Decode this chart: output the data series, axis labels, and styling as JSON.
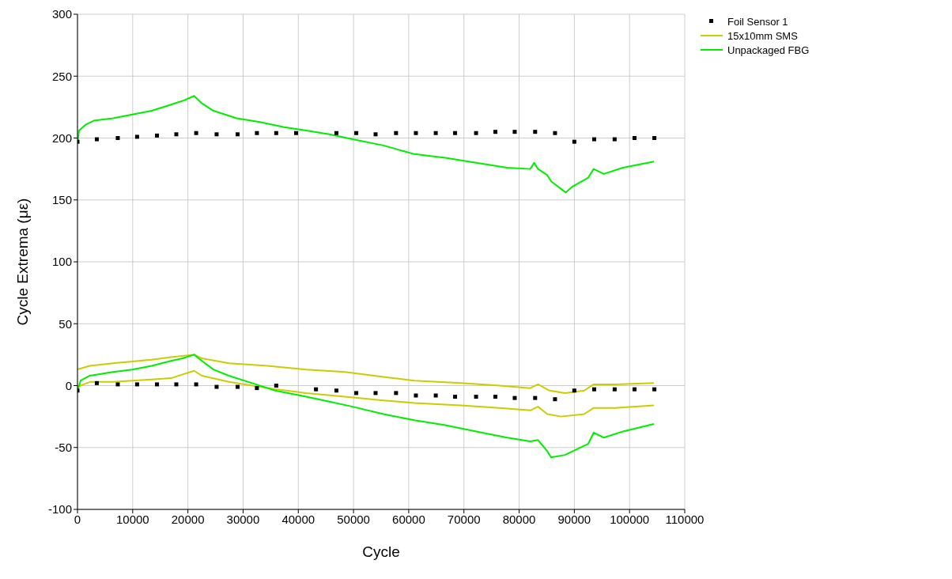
{
  "chart_data": {
    "type": "line",
    "xlabel": "Cycle",
    "ylabel": "Cycle Extrema (με)",
    "xlim": [
      0,
      110000
    ],
    "xticks": [
      0,
      10000,
      20000,
      30000,
      40000,
      50000,
      60000,
      70000,
      80000,
      90000,
      100000,
      110000
    ],
    "ylim": [
      -100,
      300
    ],
    "yticks": [
      -100,
      -50,
      0,
      50,
      100,
      150,
      200,
      250,
      300
    ],
    "grid": true,
    "legend": "top right",
    "series": [
      {
        "name": "Foil Sensor 1",
        "type": "scatter",
        "marker": "square",
        "color": "#000000",
        "x": [
          0,
          3500,
          7300,
          10800,
          14400,
          17900,
          21500,
          25200,
          29000,
          32500,
          36000,
          39600,
          46900,
          50500,
          54000,
          57700,
          61300,
          64900,
          68400,
          72200,
          75700,
          79200,
          82900,
          86500,
          90000,
          93600,
          97300,
          100900,
          104500,
          0,
          3500,
          7300,
          10800,
          14400,
          17900,
          21500,
          25200,
          29000,
          32500,
          36000,
          43200,
          46900,
          50500,
          54000,
          57700,
          61300,
          64900,
          68400,
          72200,
          75700,
          79200,
          82900,
          86500,
          90000,
          93600,
          97300,
          100900,
          104500
        ],
        "values": [
          197,
          199,
          200,
          201,
          202,
          203,
          204,
          203,
          203,
          204,
          204,
          204,
          204,
          204,
          203,
          204,
          204,
          204,
          204,
          204,
          205,
          205,
          205,
          204,
          197,
          199,
          199,
          200,
          200,
          -4,
          2,
          1,
          1,
          1,
          1,
          1,
          -1,
          -1,
          -2,
          0,
          -3,
          -4,
          -6,
          -6,
          -6,
          -8,
          -8,
          -9,
          -9,
          -9,
          -10,
          -10,
          -11,
          -4,
          -3,
          -3,
          -3,
          -3
        ]
      },
      {
        "name": "15x10mm SMS",
        "marker": "none",
        "color": "#cccc00",
        "x": [
          0,
          2240,
          6440,
          13440,
          16940,
          21130,
          22530,
          27430,
          34430,
          41430,
          48430,
          55420,
          61020,
          69420,
          76420,
          82020,
          83420,
          85520,
          88310,
          91800,
          93500,
          97420,
          104410
        ],
        "values": [
          13,
          16,
          18,
          21,
          23,
          25,
          22,
          18,
          16,
          13,
          11,
          7,
          4,
          2,
          0,
          -2,
          1,
          -4,
          -6,
          -4,
          1,
          1,
          2
        ]
      },
      {
        "marker": "none",
        "color": "#cccc00",
        "x": [
          0,
          2240,
          6440,
          13440,
          16940,
          21130,
          22530,
          27430,
          34430,
          41430,
          48430,
          55420,
          61020,
          69420,
          76420,
          82020,
          83420,
          85100,
          87620,
          91800,
          93500,
          97420,
          104410
        ],
        "values": [
          -1,
          3,
          3,
          5,
          6,
          12,
          8,
          3,
          -2,
          -6,
          -9,
          -12,
          -14,
          -16,
          -18,
          -20,
          -17,
          -23,
          -25,
          -23,
          -18,
          -18,
          -16
        ]
      },
      {
        "name": "Unpackaged FBG",
        "marker": "none",
        "color": "#00ee00",
        "x": [
          0,
          280,
          1540,
          2940,
          6440,
          9940,
          13440,
          16940,
          19030,
          21130,
          22530,
          24630,
          28830,
          33030,
          37230,
          41430,
          45630,
          49830,
          55420,
          61020,
          66620,
          72220,
          77820,
          82020,
          82720,
          83420,
          85100,
          85800,
          88450,
          89720,
          92520,
          93500,
          95320,
          98810,
          104410
        ],
        "values": [
          196,
          206,
          211,
          214,
          216,
          219,
          222,
          227,
          230,
          234,
          228,
          222,
          216,
          213,
          209,
          206,
          203,
          199,
          194,
          187,
          184,
          180,
          176,
          175,
          180,
          175,
          170,
          165,
          156,
          161,
          168,
          175,
          171,
          176,
          181
        ]
      },
      {
        "marker": "none",
        "color": "#00ee00",
        "x": [
          0,
          560,
          2240,
          6440,
          9940,
          13440,
          16940,
          19030,
          21130,
          22530,
          24630,
          27430,
          31630,
          35830,
          41430,
          45630,
          49830,
          55420,
          61020,
          66620,
          72220,
          77820,
          82020,
          83420,
          85100,
          85800,
          88310,
          89720,
          92520,
          93500,
          95320,
          98810,
          104410
        ],
        "values": [
          -4,
          4,
          8,
          11,
          13,
          16,
          20,
          22,
          25,
          20,
          13,
          8,
          2,
          -4,
          -9,
          -13,
          -17,
          -23,
          -28,
          -32,
          -37,
          -42,
          -45,
          -44,
          -53,
          -58,
          -56,
          -53,
          -47,
          -38,
          -42,
          -37,
          -31
        ]
      }
    ]
  }
}
